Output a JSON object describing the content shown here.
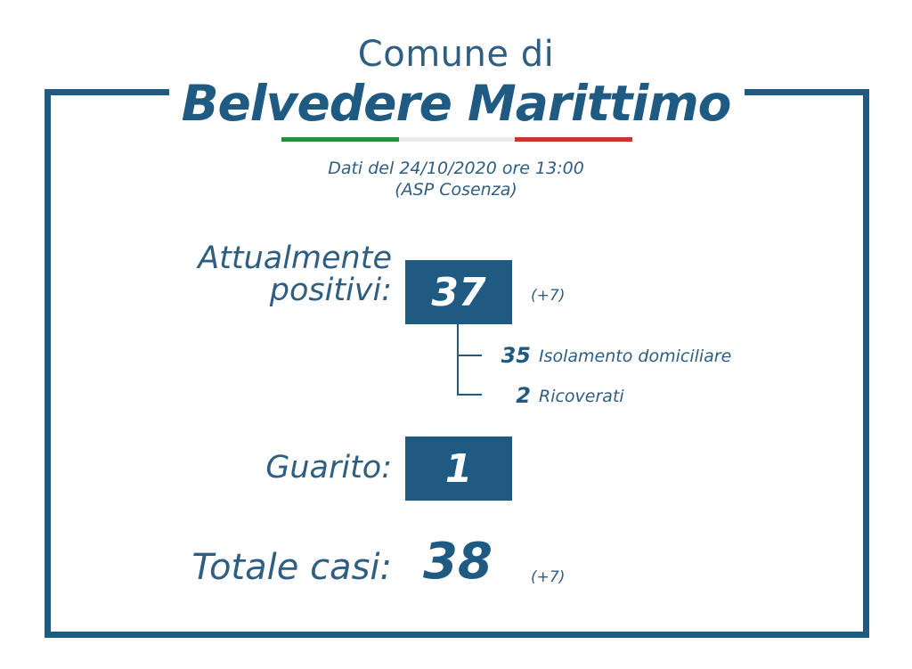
{
  "header": {
    "title_top": "Comune di",
    "title_main": "Belvedere Marittimo",
    "flag_colors": [
      "#2e8b3e",
      "#f0f0f0",
      "#c7362f"
    ]
  },
  "source": {
    "date_line": "Dati del 24/10/2020 ore 13:00",
    "source_line": "(ASP Cosenza)"
  },
  "positives": {
    "label_line1": "Attualmente",
    "label_line2": "positivi:",
    "value": "37",
    "delta": "(+7)",
    "breakdown": [
      {
        "value": "35",
        "label": "Isolamento domiciliare"
      },
      {
        "value": "2",
        "label": "Ricoverati"
      }
    ]
  },
  "recovered": {
    "label": "Guarito:",
    "value": "1"
  },
  "total": {
    "label": "Totale casi:",
    "value": "38",
    "delta": "(+7)"
  },
  "colors": {
    "primary": "#1f5a82",
    "text": "#2e5e82"
  }
}
